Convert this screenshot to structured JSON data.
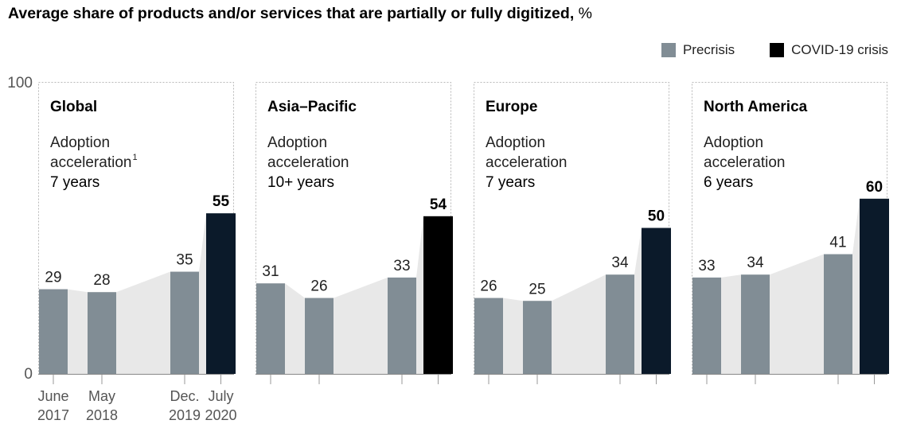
{
  "title": "Average share of products and/or services that are partially or fully digitized,",
  "title_unit": "%",
  "legend": [
    {
      "label": "Precrisis",
      "color": "#818d95"
    },
    {
      "label": "COVID-19 crisis",
      "color": "#000000"
    }
  ],
  "y_axis": {
    "min_label": "0",
    "max_label": "100"
  },
  "x_tick_labels": [
    {
      "line1": "June",
      "line2": "2017"
    },
    {
      "line1": "May",
      "line2": "2018"
    },
    {
      "line1": "Dec.",
      "line2": "2019"
    },
    {
      "line1": "July",
      "line2": "2020"
    }
  ],
  "chart_data": {
    "type": "bar",
    "ylim": [
      0,
      100
    ],
    "categories": [
      "June 2017",
      "May 2018",
      "Dec. 2019",
      "July 2020"
    ],
    "colors": {
      "precrisis": "#818d95",
      "covid": "#0b1a2a",
      "covid_alt": "#000000",
      "area": "#e8e8e8"
    },
    "panels": [
      {
        "region": "Global",
        "note_line1": "Adoption",
        "note_line2": "acceleration",
        "footnote": "1",
        "note_value": "7 years",
        "values": [
          29,
          28,
          35,
          55
        ],
        "covid_color": "#0b1a2a"
      },
      {
        "region": "Asia–Pacific",
        "note_line1": "Adoption",
        "note_line2": "acceleration",
        "footnote": "",
        "note_value": "10+ years",
        "values": [
          31,
          26,
          33,
          54
        ],
        "covid_color": "#000000"
      },
      {
        "region": "Europe",
        "note_line1": "Adoption",
        "note_line2": "acceleration",
        "footnote": "",
        "note_value": "7 years",
        "values": [
          26,
          25,
          34,
          50
        ],
        "covid_color": "#0b1a2a"
      },
      {
        "region": "North America",
        "note_line1": "Adoption",
        "note_line2": "acceleration",
        "footnote": "",
        "note_value": "6 years",
        "values": [
          33,
          34,
          41,
          60
        ],
        "covid_color": "#0b1a2a"
      }
    ]
  }
}
